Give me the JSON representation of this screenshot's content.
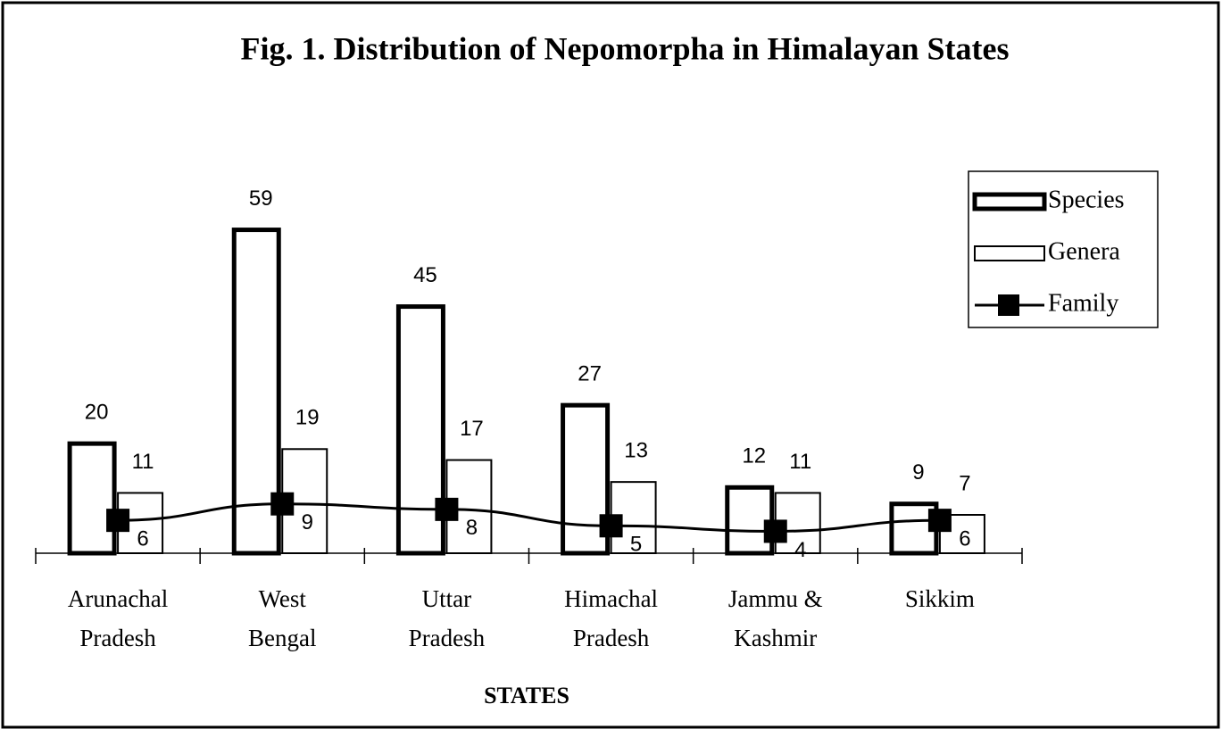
{
  "chart_data": {
    "type": "bar",
    "title": "Fig. 1. Distribution of Nepomorpha in Himalayan States",
    "x_label": "STATES",
    "categories": [
      "Arunachal\nPradesh",
      "West\nBengal",
      "Uttar\nPradesh",
      "Himachal\nPradesh",
      "Jammu &\nKashmir",
      "Sikkim"
    ],
    "series": [
      {
        "name": "Species",
        "type": "bar",
        "color": "#000000",
        "values": [
          20,
          59,
          45,
          27,
          12,
          9
        ]
      },
      {
        "name": "Genera",
        "type": "bar",
        "color": "#000000",
        "values": [
          11,
          19,
          17,
          13,
          11,
          7
        ]
      },
      {
        "name": "Family",
        "type": "line",
        "color": "#000000",
        "values": [
          6,
          9,
          8,
          5,
          4,
          6
        ]
      }
    ],
    "ylim": [
      0,
      70
    ],
    "legend": "right"
  }
}
